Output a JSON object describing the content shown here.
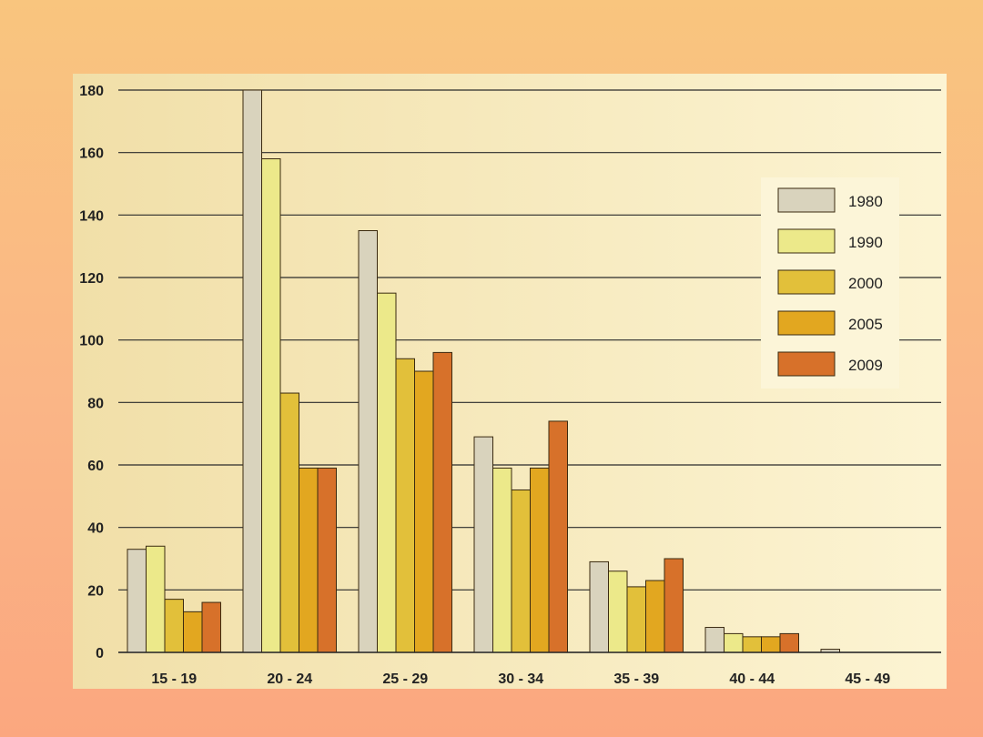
{
  "chart_data": {
    "type": "bar",
    "title": "",
    "xlabel": "",
    "ylabel": "",
    "ylim": [
      0,
      180
    ],
    "yticks": [
      0,
      20,
      40,
      60,
      80,
      100,
      120,
      140,
      160,
      180
    ],
    "grid": true,
    "legend_position": "right",
    "categories": [
      "15 - 19",
      "20 - 24",
      "25 - 29",
      "30 - 34",
      "35 - 39",
      "40 - 44",
      "45 - 49"
    ],
    "series": [
      {
        "name": "1980",
        "color": "#d9d3bd",
        "values": [
          33,
          180,
          135,
          69,
          29,
          8,
          1
        ]
      },
      {
        "name": "1990",
        "color": "#ece98a",
        "values": [
          34,
          158,
          115,
          59,
          26,
          6,
          0
        ]
      },
      {
        "name": "2000",
        "color": "#e2c03a",
        "values": [
          17,
          83,
          94,
          52,
          21,
          5,
          0
        ]
      },
      {
        "name": "2005",
        "color": "#e2a720",
        "values": [
          13,
          59,
          90,
          59,
          23,
          5,
          0
        ]
      },
      {
        "name": "2009",
        "color": "#d7712a",
        "values": [
          16,
          59,
          96,
          74,
          30,
          6,
          0
        ]
      }
    ]
  }
}
